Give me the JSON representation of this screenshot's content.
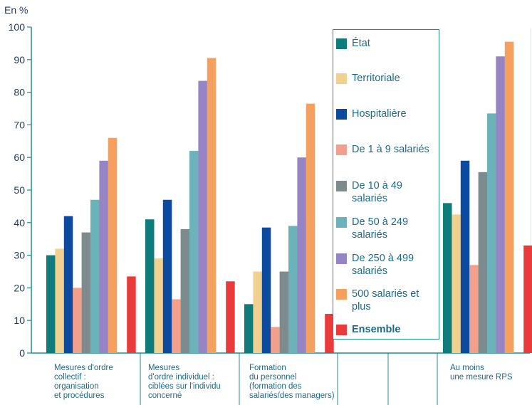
{
  "chart_data": {
    "type": "bar",
    "y_unit_label": "En %",
    "ylim": [
      0,
      100
    ],
    "yticks": [
      0,
      10,
      20,
      30,
      40,
      50,
      60,
      70,
      80,
      90,
      100
    ],
    "grid": false,
    "legend_position": "center",
    "categories": [
      [
        "Mesures d'ordre",
        "collectif :",
        "organisation",
        "et procédures"
      ],
      [
        "Mesures",
        "d'ordre individuel :",
        "ciblées sur l'individu",
        "concerné"
      ],
      [
        "Formation",
        "du personnel",
        "(formation des",
        "salariés/des managers)"
      ],
      [
        ""
      ],
      [
        "Au moins",
        "une mesure RPS"
      ]
    ],
    "series": [
      {
        "name": "État",
        "color": "#0f7b7a",
        "values": [
          30,
          41,
          15,
          null,
          46
        ]
      },
      {
        "name": "Territoriale",
        "color": "#f2d08f",
        "values": [
          32,
          29,
          25,
          null,
          42.5
        ]
      },
      {
        "name": "Hospitalière",
        "color": "#0b4a9e",
        "values": [
          42,
          47,
          38.5,
          null,
          59
        ]
      },
      {
        "name": "De 1 à 9 salariés",
        "color": "#f2a08c",
        "values": [
          20,
          16.5,
          8,
          null,
          27
        ]
      },
      {
        "name": "De 10 à 49 salariés",
        "color": "#7e8b8e",
        "values": [
          37,
          38,
          25,
          null,
          55.5
        ]
      },
      {
        "name": "De 50 à 249 salariés",
        "color": "#6bb3b9",
        "values": [
          47,
          62,
          39,
          null,
          73.5
        ]
      },
      {
        "name": "De 250 à 499 salariés",
        "color": "#9784c4",
        "values": [
          59,
          83.5,
          60,
          null,
          91
        ]
      },
      {
        "name": "500 salariés et plus",
        "color": "#f5a05e",
        "values": [
          66,
          90.5,
          76.5,
          null,
          95.5
        ]
      },
      {
        "name": "Ensemble",
        "color": "#e93b3b",
        "values": [
          23.5,
          22,
          12,
          null,
          33
        ]
      }
    ]
  },
  "colors": {
    "axis": "#1f8e93",
    "text": "#1d3a5a",
    "category_text": "#1d6a8a"
  }
}
